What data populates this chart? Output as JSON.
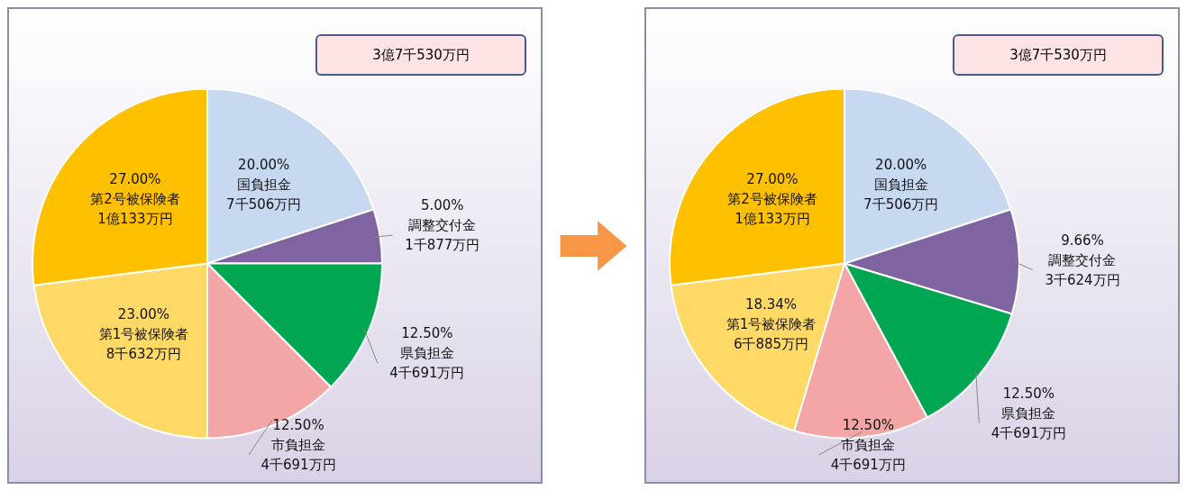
{
  "chart_data": [
    {
      "type": "pie",
      "title": "3億7千530万円",
      "categories": [
        "国負担金",
        "調整交付金",
        "県負担金",
        "市負担金",
        "第1号被保険者",
        "第2号被保険者"
      ],
      "values": [
        20,
        5,
        12.5,
        12.5,
        23,
        27
      ],
      "value_labels": [
        "20.00%",
        "5.00%",
        "12.50%",
        "12.50%",
        "23.00%",
        "27.00%"
      ],
      "colors": [
        "#c6d9f1",
        "#8064a2",
        "#00a651",
        "#f4a6a6",
        "#ffd966",
        "#ffc000"
      ],
      "annotations": [
        "7千506万円",
        "1千877万円",
        "4千691万円",
        "4千691万円",
        "8千632万円",
        "1億133万円"
      ],
      "legend": false
    },
    {
      "type": "pie",
      "title": "3億7千530万円",
      "categories": [
        "国負担金",
        "調整交付金",
        "県負担金",
        "市負担金",
        "第1号被保険者",
        "第2号被保険者"
      ],
      "values": [
        20,
        9.66,
        12.5,
        12.5,
        18.34,
        27
      ],
      "value_labels": [
        "20.00%",
        "9.66%",
        "12.50%",
        "12.50%",
        "18.34%",
        "27.00%"
      ],
      "colors": [
        "#c6d9f1",
        "#8064a2",
        "#00a651",
        "#f4a6a6",
        "#ffd966",
        "#ffc000"
      ],
      "annotations": [
        "7千506万円",
        "3千624万円",
        "4千691万円",
        "4千691万円",
        "6千885万円",
        "1億133万円"
      ],
      "legend": false
    }
  ]
}
